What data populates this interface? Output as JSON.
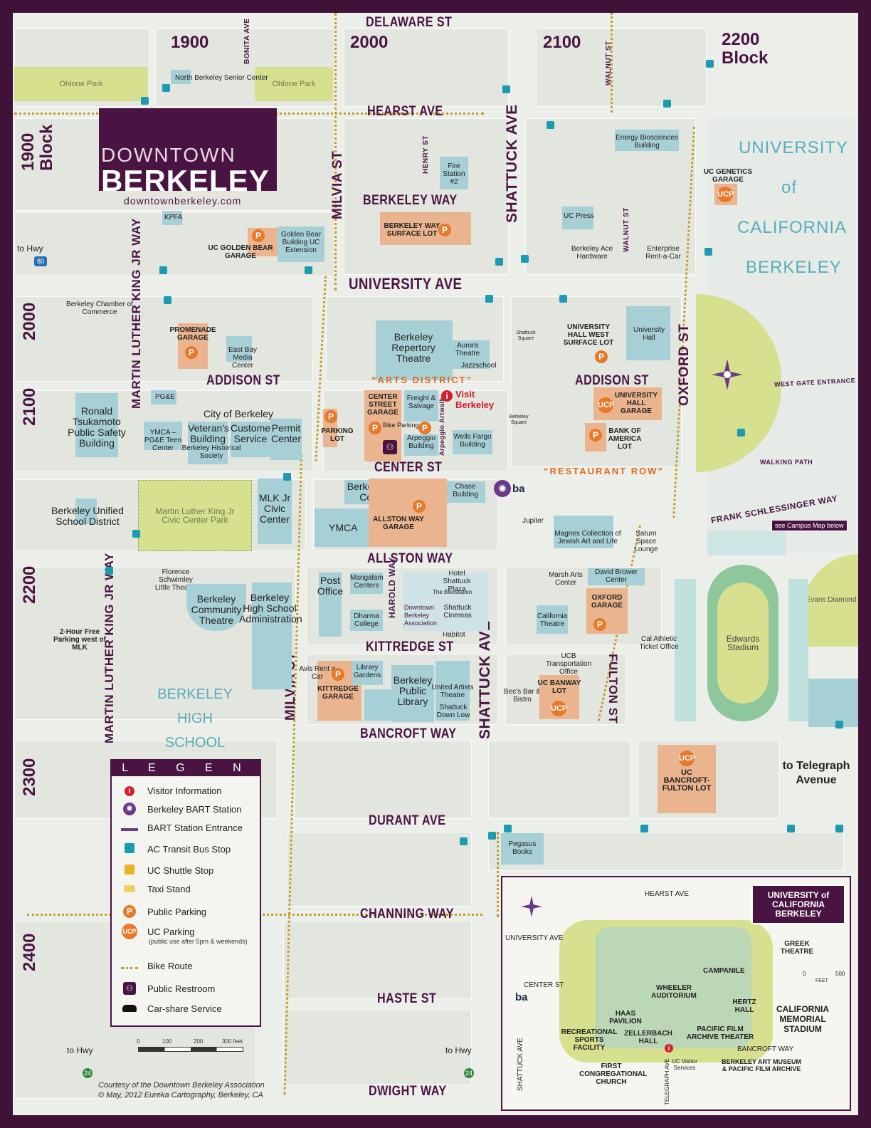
{
  "title": {
    "line1": "DOWNTOWN",
    "line2": "BERKELEY",
    "url": "downtownberkeley.com"
  },
  "blocks": {
    "b1900": "1900",
    "b2000": "2000",
    "b2100": "2100",
    "b2200a": "2200",
    "b2200b": "Block",
    "v1900a": "1900",
    "v1900b": "Block",
    "v2000": "2000",
    "v2100": "2100",
    "v2200": "2200",
    "v2300": "2300",
    "v2400": "2400"
  },
  "streets": {
    "delaware": "DELAWARE ST",
    "hearst": "HEARST  AVE",
    "berkeley_way": "BERKELEY WAY",
    "university": "UNIVERSITY AVE",
    "addison1": "ADDISON ST",
    "addison2": "ADDISON ST",
    "center": "CENTER ST",
    "allston": "ALLSTON WAY",
    "kittredge": "KITTREDGE ST",
    "bancroft": "BANCROFT WAY",
    "durant": "DURANT AVE",
    "channing": "CHANNING WAY",
    "haste": "HASTE ST",
    "dwight": "DWIGHT WAY",
    "milvia1": "MILVIA ST",
    "milvia2": "MILVIA ST",
    "shattuck1": "SHATTUCK AVE",
    "shattuck2": "SHATTUCK AVE",
    "oxford": "OXFORD ST",
    "fulton": "FULTON ST",
    "mlk1": "MARTIN LUTHER KING JR WAY",
    "mlk2": "MARTIN LUTHER KING JR WAY",
    "bonita": "BONITA AVE",
    "walnut1": "WALNUT ST",
    "walnut2": "WALNUT ST",
    "henry": "HENRY ST",
    "harold": "HAROLD WAY",
    "frank": "FRANK SCHLESSINGER WAY",
    "westgate": "WEST GATE ENTRANCE",
    "walking": "WALKING PATH",
    "arpeggio": "Arpeggio Artwalk"
  },
  "university": {
    "line1": "UNIVERSITY",
    "line2": "of",
    "line3": "CALIFORNIA",
    "line4": "BERKELEY"
  },
  "parks": {
    "ohlone1": "Ohlone Park",
    "ohlone2": "Ohlone Park",
    "mlkpark": "Martin Luther King Jr Civic Center Park",
    "bhs": "BERKELEY HIGH SCHOOL",
    "edwards": "Edwards Stadium",
    "evans": "Evans Diamond"
  },
  "places": {
    "nbsc": "North Berkeley Senior Center",
    "fire": "Fire Station #2",
    "energy": "Energy Biosciences Building",
    "ucgenetics": "UC GENETICS GARAGE",
    "kpfa": "KPFA",
    "goldenbear": "UC GOLDEN BEAR GARAGE",
    "gbbuilding": "Golden Bear Building UC Extension",
    "bwlot": "BERKELEY WAY SURFACE LOT",
    "ucpress": "UC Press",
    "ace": "Berkeley Ace Hardware",
    "enterprise": "Enterprise Rent-a-Car",
    "chamber": "Berkeley Chamber of Commerce",
    "promenade": "PROMENADE GARAGE",
    "eastbay": "East Bay Media Center",
    "rep": "Berkeley Repertory Theatre",
    "aurora": "Aurora Theatre",
    "jazz": "Jazzschool",
    "shattucksq": "Shattuck Square",
    "uhwlot": "UNIVERSITY HALL WEST SURFACE LOT",
    "uhall": "University Hall",
    "arts": "“ARTS DISTRICT”",
    "pge": "PG&E",
    "cityofberkeley": "City of Berkeley",
    "veterans": "Veteran's Building",
    "customer": "Customer Service",
    "permit": "Permit Center",
    "ymcapg": "YMCA – PG&E Teen Center",
    "bhs_society": "Berkeley Historical Society",
    "ronald": "Ronald Tsukamoto Public Safety Building",
    "parkinglot": "PARKING LOT",
    "centerst": "CENTER STREET GARAGE",
    "freight": "Freight & Salvage",
    "visit": "Visit Berkeley",
    "bikeparking": "Bike Parking",
    "arpeggiobldg": "Arpeggio Building",
    "wellsfargo": "Wells Fargo Building",
    "berkeleysq": "Berkeley Square",
    "uhgarage": "UNIVERSITY HALL GARAGE",
    "boa": "BANK OF AMERICA LOT",
    "restaurant": "“RESTAURANT ROW”",
    "bcc": "Berkeley City College",
    "chase": "Chase Building",
    "allstongarage": "ALLSTON WAY GARAGE",
    "ymca": "YMCA",
    "mlkcivic": "MLK Jr Civic Center",
    "busd": "Berkeley Unified School District",
    "jupiter": "Jupiter",
    "magnes": "Magnes Collection of Jewish Art and Life",
    "saturn": "Saturn Space Lounge",
    "campusmap": "see Campus Map below",
    "florence": "Florence Schwimley Little Theatre",
    "bct": "Berkeley Community Theatre",
    "bhsadmin": "Berkeley High School Administration",
    "freepark": "2-Hour Free Parking west of MLK",
    "postoffice": "Post Office",
    "mangalam": "Mangalam Centers",
    "dharma": "Dharma College",
    "hotel": "Hotel Shattuck Plaza",
    "bikestation": "The Bikestation",
    "dba": "Downtown Berkeley Association",
    "cinemas": "Shattuck Cinemas",
    "habitot": "Habitot",
    "marsh": "Marsh Arts Center",
    "brower": "David Brower Center",
    "oxfordgarage": "OXFORD GARAGE",
    "caltheatre": "California Theatre",
    "athletic": "Cal Athletic Ticket Office",
    "avis": "Avis Rent a Car",
    "kittgarage": "KITTREDGE GARAGE",
    "libgardens": "Library Gardens",
    "bpl": "Berkeley Public Library",
    "uat": "United Artists Theatre",
    "downlow": "Shattuck Down Low",
    "ucbto": "UCB Transportation Office",
    "becs": "Bec's Bar & Bistro",
    "banway": "UC BANWAY LOT",
    "bancroftfulton": "UC BANCROFT-FULTON LOT",
    "telegraph": "to Telegraph Avenue",
    "pegasus": "Pegasus Books",
    "hwy80": "to Hwy",
    "hwy24a": "to Hwy",
    "hwy24b": "to Hwy"
  },
  "legend": {
    "title": "L E G E N D",
    "items": [
      {
        "label": "Visitor Information",
        "icon": "info-icon"
      },
      {
        "label": "Berkeley BART Station",
        "icon": "bart-station-icon"
      },
      {
        "label": "BART Station Entrance",
        "icon": "bart-entrance-icon"
      },
      {
        "label": "AC Transit Bus Stop",
        "icon": "bus-stop-icon"
      },
      {
        "label": "UC Shuttle Stop",
        "icon": "shuttle-icon"
      },
      {
        "label": "Taxi Stand",
        "icon": "taxi-icon"
      },
      {
        "label": "Public Parking",
        "icon": "parking-icon"
      },
      {
        "label": "UC Parking",
        "icon": "uc-parking-icon"
      },
      {
        "label": "Bike Route",
        "icon": "bike-icon"
      },
      {
        "label": "Public Restroom",
        "icon": "restroom-icon"
      },
      {
        "label": "Car-share Service",
        "icon": "car-icon"
      }
    ],
    "ucnote": "(public use after 5pm & weekends)",
    "scale": [
      "0",
      "100",
      "200",
      "300 feet"
    ]
  },
  "credits": {
    "line1": "Courtesy of the Downtown Berkeley Association",
    "line2": "© May, 2012 Eureka Cartography, Berkeley, CA"
  },
  "inset": {
    "title": "UNIVERSITY of CALIFORNIA BERKELEY",
    "hearst": "HEARST AVE",
    "univ": "UNIVERSITY AVE",
    "center": "CENTER ST",
    "bancroft": "BANCROFT WAY",
    "shattuck": "SHATTUCK AVE",
    "telegraph": "TELEGRAPH AVE",
    "greek": "GREEK THEATRE",
    "campanile": "CAMPANILE",
    "wheeler": "WHEELER AUDITORIUM",
    "hertz": "HERTZ HALL",
    "haas": "HAAS PAVILION",
    "memorial": "CALIFORNIA MEMORIAL STADIUM",
    "rsf": "RECREATIONAL SPORTS FACILITY",
    "zellerbach": "ZELLERBACH HALL",
    "pfa": "PACIFIC FILM ARCHIVE THEATER",
    "firstcong": "FIRST CONGREGATIONAL CHURCH",
    "visitor": "UC Visitor Services",
    "bam": "BERKELEY ART MUSEUM & PACIFIC FILM ARCHIVE",
    "scale0": "0",
    "scale500": "500",
    "feet": "FEET"
  },
  "colors": {
    "frame": "#3f1238",
    "street_label": "#4a1442",
    "building": "#a7cfd6",
    "park": "#d6e08f",
    "parking": "#e8782a",
    "bike_route": "#c39c2a"
  }
}
